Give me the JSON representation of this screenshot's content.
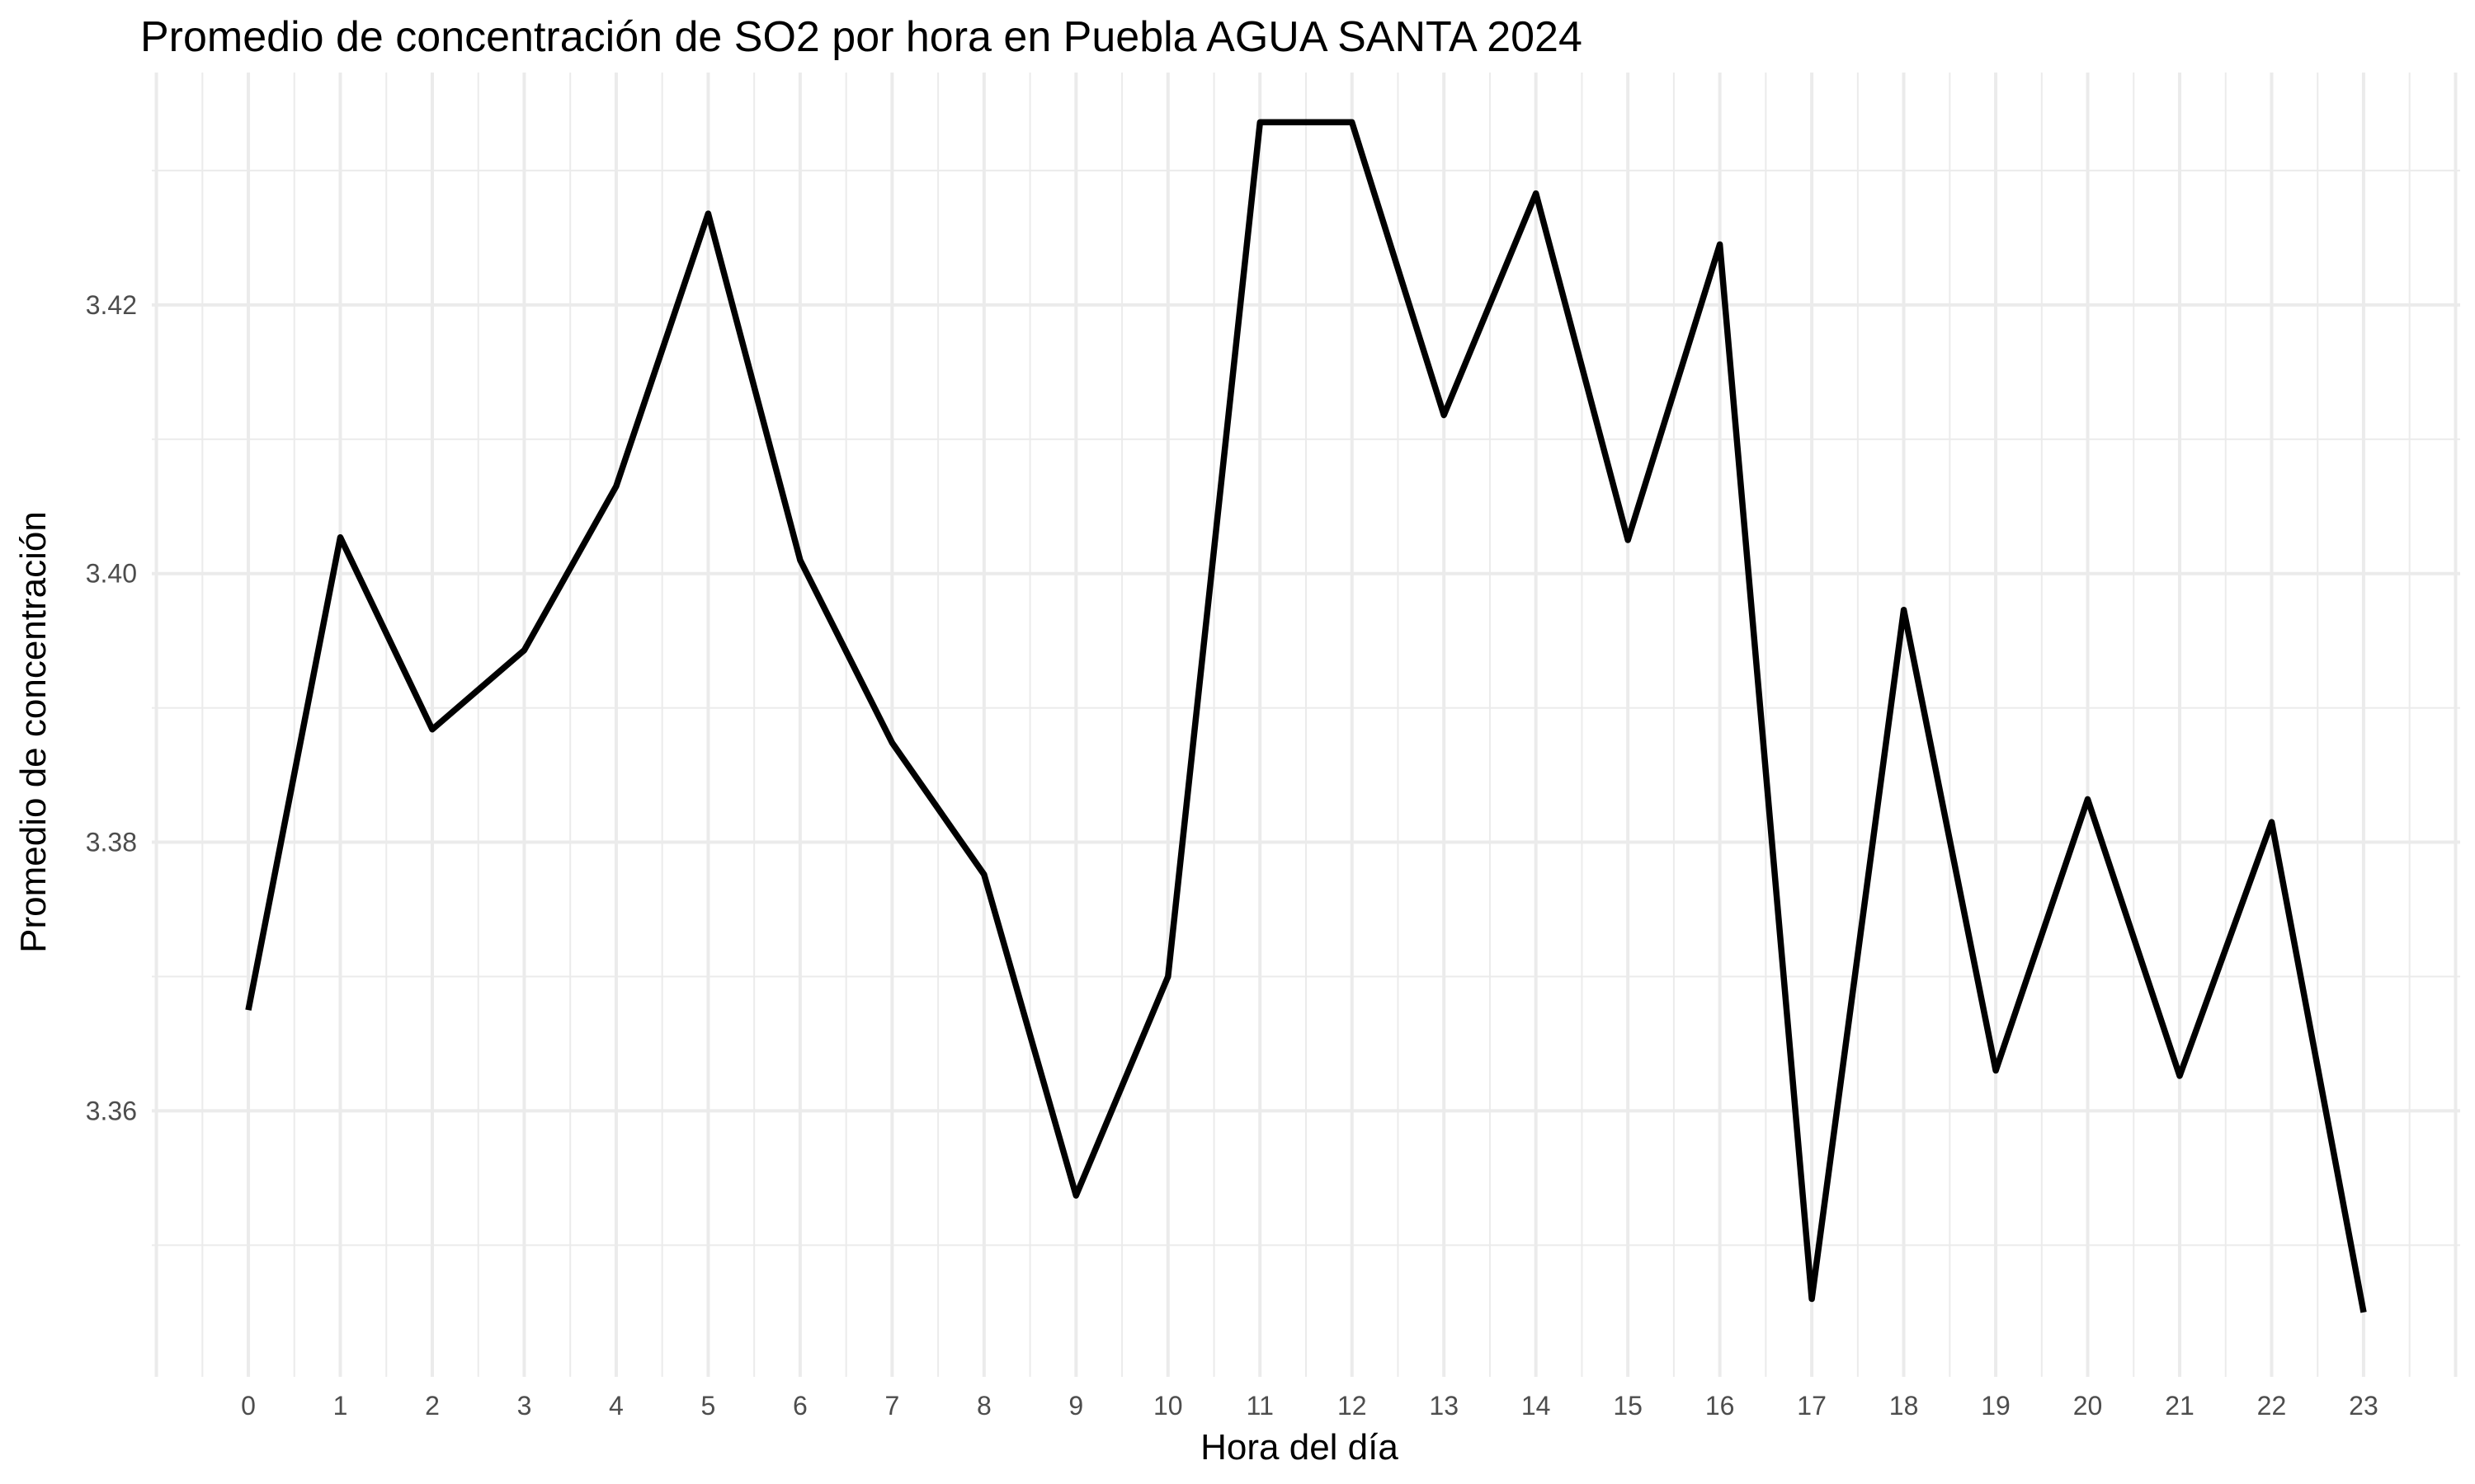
{
  "chart_data": {
    "type": "line",
    "title": "Promedio de concentración de SO2 por hora en Puebla AGUA SANTA 2024",
    "xlabel": "Hora del día",
    "ylabel": "Promedio de concentración",
    "x": [
      0,
      1,
      2,
      3,
      4,
      5,
      6,
      7,
      8,
      9,
      10,
      11,
      12,
      13,
      14,
      15,
      16,
      17,
      18,
      19,
      20,
      21,
      22,
      23
    ],
    "x_tick_labels": [
      "0",
      "1",
      "2",
      "3",
      "4",
      "5",
      "6",
      "7",
      "8",
      "9",
      "10",
      "11",
      "12",
      "13",
      "14",
      "15",
      "16",
      "17",
      "18",
      "19",
      "20",
      "21",
      "22",
      "23"
    ],
    "xlim": [
      -1.05,
      24.05
    ],
    "y_ticks": [
      3.36,
      3.38,
      3.4,
      3.42
    ],
    "y_tick_labels": [
      "3.36",
      "3.38",
      "3.40",
      "3.42"
    ],
    "ylim": [
      3.3402,
      3.4373
    ],
    "series": [
      {
        "values": [
          3.3675,
          3.4027,
          3.3884,
          3.3943,
          3.4065,
          3.4268,
          3.401,
          3.3874,
          3.3776,
          3.3537,
          3.37,
          3.4336,
          3.4336,
          3.4118,
          3.4283,
          3.4025,
          3.4245,
          3.346,
          3.3973,
          3.363,
          3.3832,
          3.3626,
          3.3815,
          3.345
        ],
        "color": "#000000"
      }
    ],
    "grid": true,
    "legend": "none",
    "background": "#ffffff",
    "grid_color": "#ebebeb"
  }
}
